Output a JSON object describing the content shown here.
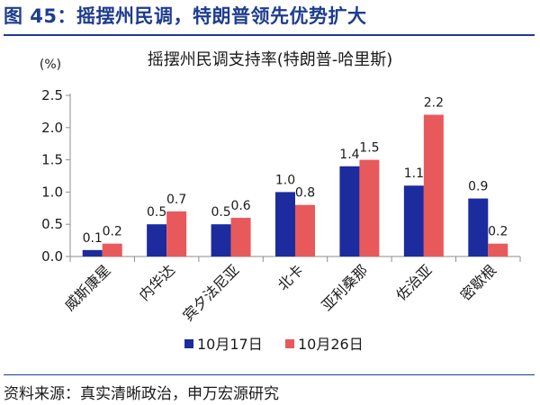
{
  "figure": {
    "title": "图 45：摇摆州民调，特朗普领先优势扩大",
    "source": "资料来源：真实清晰政治，申万宏源研究"
  },
  "chart_data": {
    "type": "bar",
    "title": "摇摆州民调支持率(特朗普-哈里斯)",
    "ylabel": "(%)",
    "xlabel": "",
    "ylim": [
      0,
      2.5
    ],
    "yticks": [
      "0.0",
      "0.5",
      "1.0",
      "1.5",
      "2.0",
      "2.5"
    ],
    "categories": [
      "威斯康星",
      "内华达",
      "宾夕法尼亚",
      "北卡",
      "亚利桑那",
      "佐治亚",
      "密歇根"
    ],
    "series": [
      {
        "name": "10月17日",
        "color": "#1c2b9e",
        "values": [
          0.1,
          0.5,
          0.5,
          1.0,
          1.4,
          1.1,
          0.9
        ],
        "labels": [
          "0.1",
          "0.5",
          "0.5",
          "1.0",
          "1.4",
          "1.1",
          "0.9"
        ]
      },
      {
        "name": "10月26日",
        "color": "#e8595c",
        "values": [
          0.2,
          0.7,
          0.6,
          0.8,
          1.5,
          2.2,
          0.2
        ],
        "labels": [
          "0.2",
          "0.7",
          "0.6",
          "0.8",
          "1.5",
          "2.2",
          "0.2"
        ]
      }
    ],
    "legend_position": "bottom",
    "grid": false
  }
}
